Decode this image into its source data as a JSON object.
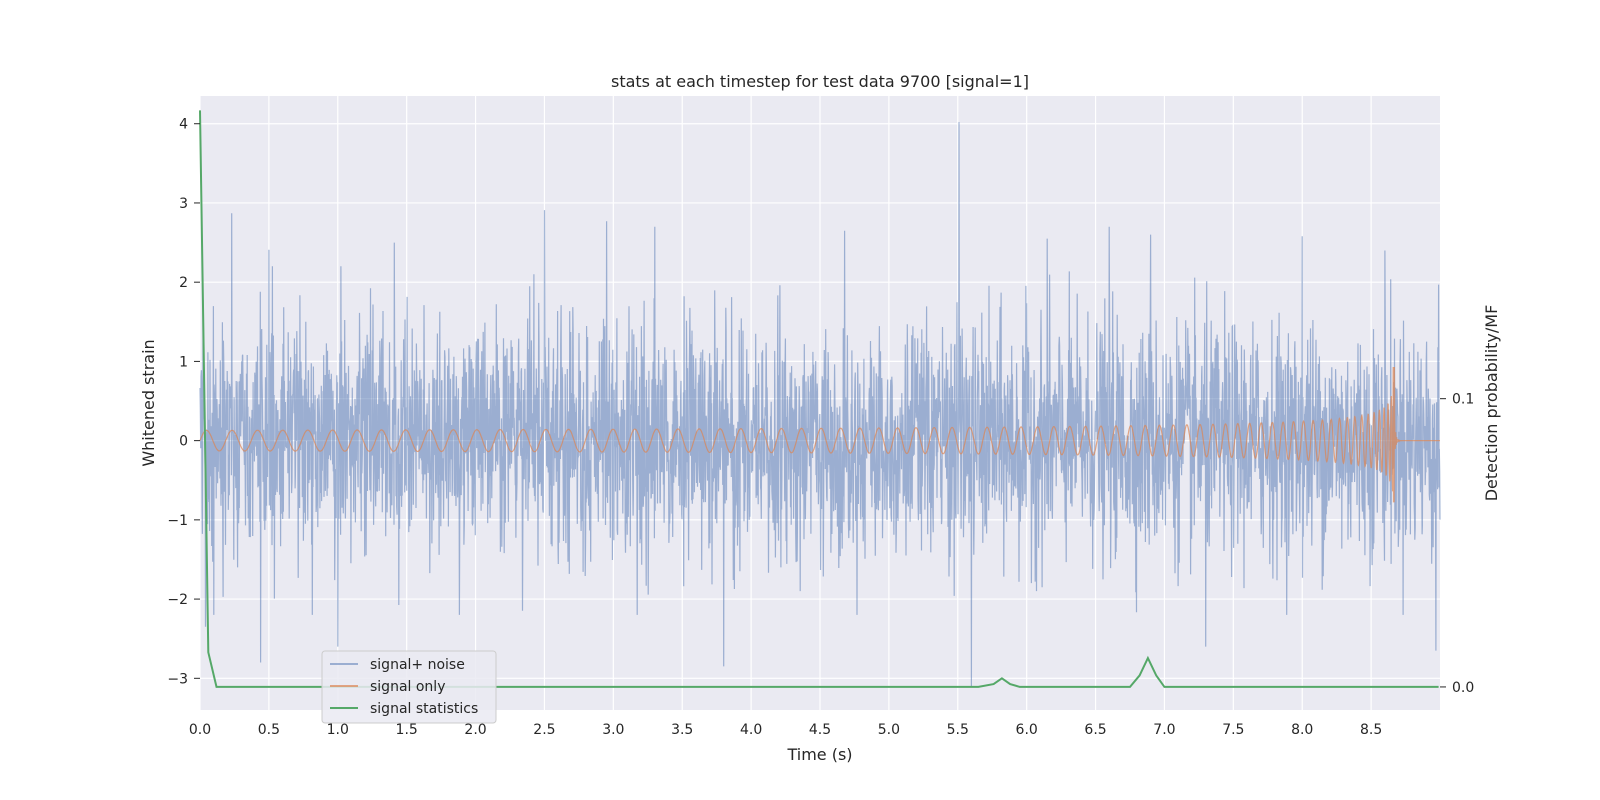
{
  "chart_data": {
    "type": "line",
    "title": "stats at each timestep for test data 9700 [signal=1]",
    "xlabel": "Time (s)",
    "ylabel": "Whitened strain",
    "y2label": "Detection probability/MF",
    "xlim": [
      0.0,
      9.0
    ],
    "ylim": [
      -3.4,
      4.35
    ],
    "y2lim": [
      -0.008,
      0.205
    ],
    "xticks": [
      0.0,
      0.5,
      1.0,
      1.5,
      2.0,
      2.5,
      3.0,
      3.5,
      4.0,
      4.5,
      5.0,
      5.5,
      6.0,
      6.5,
      7.0,
      7.5,
      8.0,
      8.5
    ],
    "xtick_labels": [
      "0.0",
      "0.5",
      "1.0",
      "1.5",
      "2.0",
      "2.5",
      "3.0",
      "3.5",
      "4.0",
      "4.5",
      "5.0",
      "5.5",
      "6.0",
      "6.5",
      "7.0",
      "7.5",
      "8.0",
      "8.5"
    ],
    "yticks": [
      4,
      3,
      2,
      1,
      0,
      -1,
      -2,
      -3
    ],
    "ytick_labels": [
      "4",
      "3",
      "2",
      "1",
      "0",
      "−1",
      "−2",
      "−3"
    ],
    "y2ticks": [
      0.1,
      0.0
    ],
    "y2tick_labels": [
      "0.1",
      "0.0"
    ],
    "grid": true,
    "legend_position": "lower-left",
    "series": [
      {
        "name": "signal+ noise",
        "color": "#4c72b0",
        "opacity": 0.5,
        "axis": "left",
        "kind": "noise-band",
        "x_range": [
          0.0,
          9.0
        ],
        "typical_envelope": [
          -1.5,
          1.6
        ],
        "peaks": [
          [
            0.04,
            -2.35
          ],
          [
            0.23,
            2.87
          ],
          [
            0.44,
            -2.8
          ],
          [
            0.5,
            2.41
          ],
          [
            1.0,
            -2.6
          ],
          [
            1.41,
            2.5
          ],
          [
            2.5,
            2.91
          ],
          [
            2.95,
            2.77
          ],
          [
            3.3,
            2.7
          ],
          [
            3.8,
            -2.85
          ],
          [
            4.68,
            2.65
          ],
          [
            5.51,
            4.02
          ],
          [
            5.6,
            -3.1
          ],
          [
            6.15,
            2.55
          ],
          [
            6.6,
            2.7
          ],
          [
            6.9,
            2.6
          ],
          [
            7.3,
            -2.6
          ],
          [
            8.0,
            2.58
          ],
          [
            8.6,
            2.4
          ],
          [
            8.97,
            -2.65
          ]
        ]
      },
      {
        "name": "signal only",
        "color": "#dd8452",
        "opacity": 0.7,
        "axis": "left",
        "kind": "chirp",
        "merger_time": 8.67,
        "peak_amplitude": 0.93,
        "min_amplitude": -0.78
      },
      {
        "name": "signal statistics",
        "color": "#55a868",
        "axis": "right",
        "x": [
          0.0,
          0.06,
          0.12,
          0.5,
          1.0,
          2.0,
          3.0,
          4.0,
          5.0,
          5.65,
          5.76,
          5.82,
          5.88,
          5.95,
          6.5,
          6.75,
          6.82,
          6.88,
          6.94,
          7.0,
          7.5,
          8.0,
          8.5,
          8.99
        ],
        "y": [
          0.2,
          0.012,
          0.0,
          0.0,
          0.0,
          0.0,
          0.0,
          0.0,
          0.0,
          0.0,
          0.001,
          0.003,
          0.001,
          0.0,
          0.0,
          0.0,
          0.004,
          0.01,
          0.004,
          0.0,
          0.0,
          0.0,
          0.0,
          0.0
        ]
      }
    ]
  }
}
